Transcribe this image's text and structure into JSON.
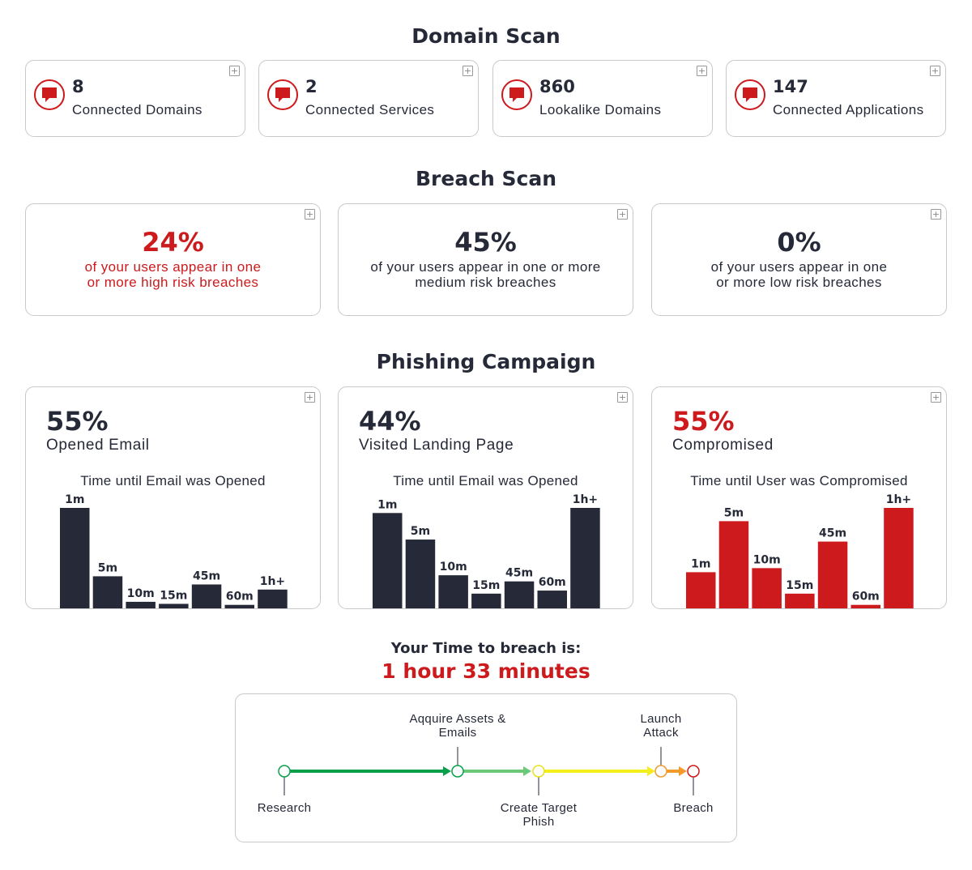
{
  "colors": {
    "dark": "#262a38",
    "red": "#cc1a1d",
    "green": "#0aa04a",
    "light_green": "#6cc97a",
    "yellow": "#f4ee1c",
    "orange": "#f39a2c"
  },
  "domain_scan": {
    "title": "Domain Scan",
    "cards": [
      {
        "icon": "alert-bubble-icon",
        "value": "8",
        "label": "Connected Domains"
      },
      {
        "icon": "alert-bubble-icon",
        "value": "2",
        "label": "Connected Services"
      },
      {
        "icon": "alert-bubble-icon",
        "value": "860",
        "label": "Lookalike Domains"
      },
      {
        "icon": "alert-bubble-icon",
        "value": "147",
        "label": "Connected Applications"
      }
    ]
  },
  "breach_scan": {
    "title": "Breach Scan",
    "cards": [
      {
        "value": "24%",
        "line1": "of your users appear in one",
        "line2": "or more high risk breaches",
        "color": "#cc1a1d"
      },
      {
        "value": "45%",
        "line1": "of your users appear in one or more",
        "line2": "medium risk breaches",
        "color": "#262a38"
      },
      {
        "value": "0%",
        "line1": "of your users appear in one",
        "line2": "or more low risk breaches",
        "color": "#262a38"
      }
    ]
  },
  "phishing": {
    "title": "Phishing Campaign",
    "cards": [
      {
        "value": "55%",
        "label": "Opened Email",
        "chart_title": "Time until Email was Opened",
        "color": "#262a38"
      },
      {
        "value": "44%",
        "label": "Visited Landing Page",
        "chart_title": "Time until Email was Opened",
        "color": "#262a38"
      },
      {
        "value": "55%",
        "label": "Compromised",
        "chart_title": "Time until User was Compromised",
        "color": "#cc1a1d"
      }
    ]
  },
  "chart_data": [
    {
      "type": "bar",
      "title": "Time until Email was Opened",
      "categories": [
        "1m",
        "5m",
        "10m",
        "15m",
        "45m",
        "60m",
        "1h+"
      ],
      "values": [
        100,
        33,
        8,
        6,
        25,
        5,
        20
      ],
      "color": "#262a38"
    },
    {
      "type": "bar",
      "title": "Time until Email was Opened",
      "categories": [
        "1m",
        "5m",
        "10m",
        "15m",
        "45m",
        "60m",
        "1h+"
      ],
      "values": [
        95,
        69,
        34,
        16,
        28,
        19,
        100
      ],
      "color": "#262a38"
    },
    {
      "type": "bar",
      "title": "Time until User was Compromised",
      "categories": [
        "1m",
        "5m",
        "10m",
        "15m",
        "45m",
        "60m",
        "1h+"
      ],
      "values": [
        37,
        87,
        41,
        16,
        67,
        5,
        100
      ],
      "color": "#cc1a1d"
    }
  ],
  "time_to_breach": {
    "label": "Your Time to breach is:",
    "value": "1 hour 33 minutes"
  },
  "timeline": {
    "stages": [
      {
        "line1": "Research",
        "line2": "",
        "position": "below",
        "color": "#0aa04a"
      },
      {
        "line1": "Aqquire Assets &",
        "line2": "Emails",
        "position": "above",
        "color": "#0aa04a"
      },
      {
        "line1": "Create Target",
        "line2": "Phish",
        "position": "below",
        "color": "#f4ee1c"
      },
      {
        "line1": "Launch",
        "line2": "Attack",
        "position": "above",
        "color": "#f39a2c"
      },
      {
        "line1": "Breach",
        "line2": "",
        "position": "below",
        "color": "#cc1a1d"
      }
    ]
  }
}
